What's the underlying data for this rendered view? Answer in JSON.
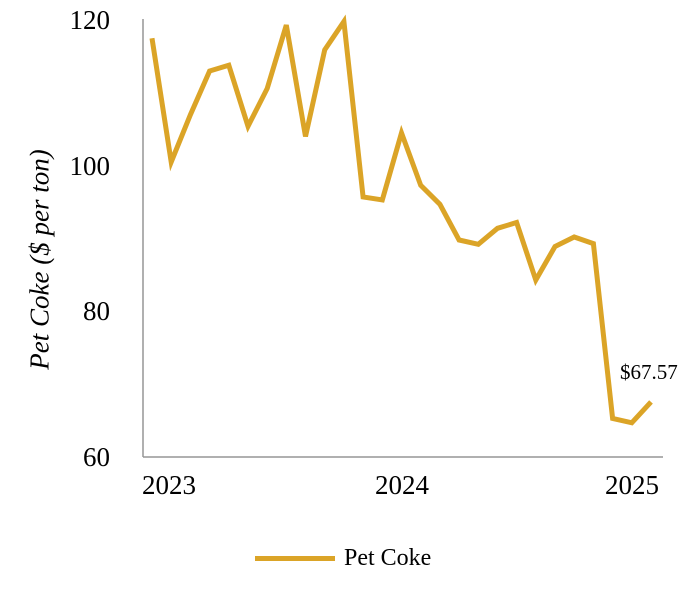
{
  "chart_data": {
    "type": "line",
    "title": "",
    "ylabel": "Pet Coke ($ per ton)",
    "xlabel": "",
    "ylim": [
      60,
      120
    ],
    "yticks": [
      "120",
      "100",
      "80",
      "60"
    ],
    "xticks": [
      "2023",
      "2024",
      "2025"
    ],
    "grid": false,
    "legend_position": "bottom",
    "line_color": "#DBA427",
    "axis_color": "#969696",
    "end_point_label": "$67.57",
    "x": [
      "Dec 2022",
      "Jan 2023",
      "Feb 2023",
      "Mar 2023",
      "Apr 2023",
      "May 2023",
      "Jun 2023",
      "Jul 2023",
      "Aug 2023",
      "Sep 2023",
      "Oct 2023",
      "Nov 2023",
      "Dec 2023",
      "Jan 2024",
      "Feb 2024",
      "Mar 2024",
      "Apr 2024",
      "May 2024",
      "Jun 2024",
      "Jul 2024",
      "Aug 2024",
      "Sep 2024",
      "Oct 2024",
      "Nov 2024",
      "Dec 2024",
      "Jan 2025",
      "Feb 2025"
    ],
    "series": [
      {
        "name": "Pet Coke",
        "values": [
          117.5,
          100.5,
          107.0,
          113.0,
          113.8,
          105.4,
          110.6,
          119.3,
          104.0,
          115.9,
          119.8,
          95.7,
          95.3,
          104.5,
          97.3,
          94.7,
          89.8,
          89.2,
          91.4,
          92.2,
          84.3,
          88.9,
          90.2,
          89.3,
          65.3,
          64.7,
          67.57
        ]
      }
    ]
  }
}
